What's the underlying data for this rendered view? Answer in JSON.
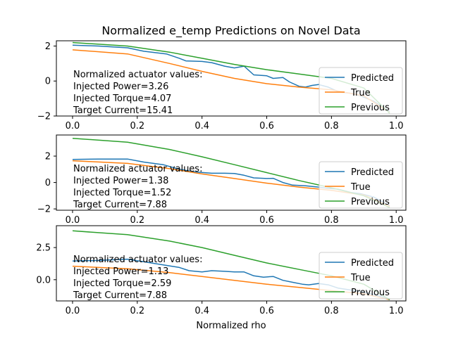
{
  "figure": {
    "title": "Normalized e_temp Predictions on Novel Data",
    "xlabel": "Normalized rho"
  },
  "chart_data": [
    {
      "type": "line",
      "title": "Normalized e_temp Predictions on Novel Data",
      "xlabel": "",
      "ylabel": "",
      "xlim": [
        -0.05,
        1.03
      ],
      "ylim": [
        -2,
        2.3
      ],
      "xticks": [
        0.0,
        0.2,
        0.4,
        0.6,
        0.8,
        1.0
      ],
      "xtick_labels": [
        "0.0",
        "0.2",
        "0.4",
        "0.6",
        "0.8",
        "1.0"
      ],
      "yticks": [
        -2,
        0,
        2
      ],
      "ytick_labels": [
        "−2",
        "0",
        "2"
      ],
      "grid": false,
      "legend_position": "lower-right",
      "annotation": [
        "Normalized actuator values:",
        "Injected Power=3.26",
        "Injected Torque=4.07",
        "Target Current=15.41"
      ],
      "series": [
        {
          "name": "Predicted",
          "color": "#1f77b4",
          "x": [
            0.0,
            0.08,
            0.17,
            0.22,
            0.29,
            0.33,
            0.35,
            0.4,
            0.43,
            0.47,
            0.5,
            0.53,
            0.56,
            0.6,
            0.62,
            0.65,
            0.67,
            0.7,
            0.72,
            0.74,
            0.76,
            0.79,
            0.82,
            0.86,
            0.89,
            0.93,
            0.98
          ],
          "y": [
            2.05,
            2.0,
            1.9,
            1.7,
            1.55,
            1.3,
            1.15,
            1.12,
            1.05,
            0.85,
            0.75,
            0.85,
            0.35,
            0.3,
            0.15,
            0.2,
            -0.05,
            -0.3,
            -0.35,
            -0.25,
            -0.2,
            -0.35,
            -0.6,
            -0.7,
            -0.85,
            -1.15,
            -1.75
          ]
        },
        {
          "name": "True",
          "color": "#ff7f0e",
          "x": [
            0.0,
            0.17,
            0.3,
            0.4,
            0.5,
            0.6,
            0.7,
            0.8,
            0.9,
            0.98
          ],
          "y": [
            1.78,
            1.55,
            1.0,
            0.55,
            0.15,
            -0.15,
            -0.35,
            -0.5,
            -0.85,
            -1.8
          ]
        },
        {
          "name": "Previous",
          "color": "#2ca02c",
          "x": [
            0.0,
            0.17,
            0.3,
            0.4,
            0.5,
            0.6,
            0.7,
            0.8,
            0.9,
            0.98
          ],
          "y": [
            2.2,
            2.0,
            1.65,
            1.3,
            0.95,
            0.65,
            0.4,
            0.15,
            -0.4,
            -1.85
          ]
        }
      ]
    },
    {
      "type": "line",
      "title": "",
      "xlabel": "",
      "ylabel": "",
      "xlim": [
        -0.05,
        1.03
      ],
      "ylim": [
        -2.1,
        3.6
      ],
      "xticks": [
        0.0,
        0.2,
        0.4,
        0.6,
        0.8,
        1.0
      ],
      "xtick_labels": [
        "0.0",
        "0.2",
        "0.4",
        "0.6",
        "0.8",
        "1.0"
      ],
      "yticks": [
        -2,
        0,
        2
      ],
      "ytick_labels": [
        "−2",
        "0",
        "2"
      ],
      "grid": false,
      "legend_position": "lower-right",
      "annotation": [
        "Normalized actuator values:",
        "Injected Power=1.38",
        "Injected Torque=1.52",
        "Target Current=7.88"
      ],
      "series": [
        {
          "name": "Predicted",
          "color": "#1f77b4",
          "x": [
            0.0,
            0.08,
            0.17,
            0.22,
            0.28,
            0.33,
            0.38,
            0.43,
            0.47,
            0.5,
            0.53,
            0.56,
            0.6,
            0.62,
            0.65,
            0.68,
            0.72,
            0.76,
            0.79,
            0.82,
            0.86,
            0.89,
            0.93,
            0.98
          ],
          "y": [
            1.75,
            1.78,
            1.78,
            1.55,
            1.35,
            1.0,
            0.8,
            0.7,
            0.7,
            0.68,
            0.55,
            0.35,
            0.3,
            0.32,
            0.0,
            -0.2,
            -0.25,
            -0.35,
            -0.45,
            -0.5,
            -0.75,
            -0.85,
            -1.1,
            -1.75
          ]
        },
        {
          "name": "True",
          "color": "#ff7f0e",
          "x": [
            0.0,
            0.17,
            0.3,
            0.4,
            0.5,
            0.6,
            0.7,
            0.8,
            0.9,
            0.98
          ],
          "y": [
            1.65,
            1.45,
            1.05,
            0.65,
            0.3,
            -0.05,
            -0.35,
            -0.6,
            -0.95,
            -1.8
          ]
        },
        {
          "name": "Previous",
          "color": "#2ca02c",
          "x": [
            0.0,
            0.17,
            0.3,
            0.4,
            0.5,
            0.6,
            0.7,
            0.8,
            0.9,
            0.98
          ],
          "y": [
            3.35,
            3.05,
            2.5,
            1.95,
            1.35,
            0.75,
            0.15,
            -0.4,
            -1.0,
            -1.9
          ]
        }
      ]
    },
    {
      "type": "line",
      "title": "",
      "xlabel": "Normalized rho",
      "ylabel": "",
      "xlim": [
        -0.05,
        1.03
      ],
      "ylim": [
        -1.65,
        4.2
      ],
      "xticks": [
        0.0,
        0.2,
        0.4,
        0.6,
        0.8,
        1.0
      ],
      "xtick_labels": [
        "0.0",
        "0.2",
        "0.4",
        "0.6",
        "0.8",
        "1.0"
      ],
      "yticks": [
        0.0,
        2.5
      ],
      "ytick_labels": [
        "0.0",
        "2.5"
      ],
      "grid": false,
      "legend_position": "lower-right",
      "annotation": [
        "Normalized actuator values:",
        "Injected Power=1.13",
        "Injected Torque=2.59",
        "Target Current=7.88"
      ],
      "series": [
        {
          "name": "Predicted",
          "color": "#1f77b4",
          "x": [
            0.0,
            0.08,
            0.17,
            0.22,
            0.28,
            0.33,
            0.36,
            0.4,
            0.43,
            0.47,
            0.5,
            0.53,
            0.56,
            0.59,
            0.62,
            0.65,
            0.68,
            0.71,
            0.73,
            0.76,
            0.79,
            0.82,
            0.86,
            0.89,
            0.93,
            0.98
          ],
          "y": [
            1.45,
            1.5,
            1.6,
            1.4,
            1.15,
            0.95,
            0.7,
            0.6,
            0.7,
            0.65,
            0.6,
            0.6,
            0.3,
            0.2,
            0.25,
            -0.05,
            -0.2,
            -0.35,
            -0.4,
            -0.3,
            -0.4,
            -0.65,
            -0.8,
            -0.9,
            -1.15,
            -1.5
          ]
        },
        {
          "name": "True",
          "color": "#ff7f0e",
          "x": [
            0.0,
            0.17,
            0.3,
            0.4,
            0.5,
            0.6,
            0.7,
            0.8,
            0.9,
            0.98
          ],
          "y": [
            1.05,
            0.85,
            0.55,
            0.25,
            -0.05,
            -0.35,
            -0.6,
            -0.85,
            -1.1,
            -1.55
          ]
        },
        {
          "name": "Previous",
          "color": "#2ca02c",
          "x": [
            0.0,
            0.17,
            0.3,
            0.4,
            0.5,
            0.6,
            0.7,
            0.8,
            0.9,
            0.98
          ],
          "y": [
            3.8,
            3.5,
            3.0,
            2.5,
            1.9,
            1.3,
            0.8,
            0.3,
            -0.35,
            -1.55
          ]
        }
      ]
    }
  ]
}
